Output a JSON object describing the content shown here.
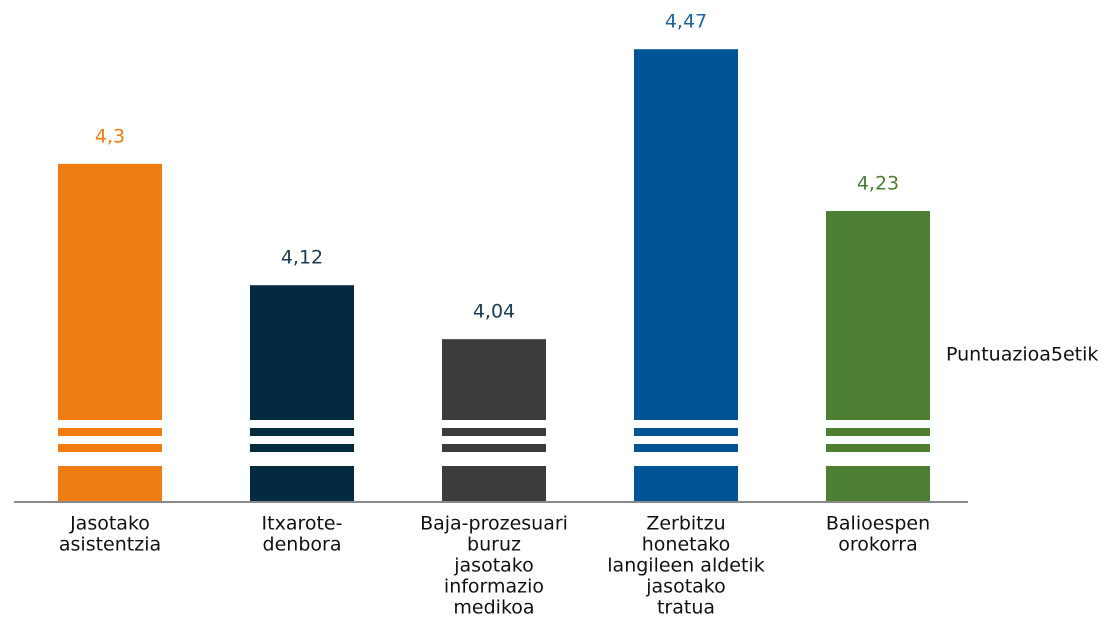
{
  "chart_data": {
    "type": "bar",
    "categories": [
      [
        "Jasotako",
        "asistentzia"
      ],
      [
        "Itxarote-",
        "denbora"
      ],
      [
        "Baja-prozesuari",
        "buruz",
        "jasotako",
        "informazio",
        "medikoa"
      ],
      [
        "Zerbitzu",
        "honetako",
        "langileen aldetik",
        "jasotako",
        "tratua"
      ],
      [
        "Balioespen",
        "orokorra"
      ]
    ],
    "series": [
      {
        "name": "Puntuazioa5etik",
        "values": [
          4.3,
          4.12,
          4.04,
          4.47,
          4.23
        ],
        "value_labels": [
          "4,3",
          "4,12",
          "4,04",
          "4,47",
          "4,23"
        ],
        "colors": [
          "#f07d14",
          "#032a3e",
          "#3c3c3c",
          "#005395",
          "#4c7f33"
        ],
        "value_label_colors": [
          "#f07d14",
          "#1c3b55",
          "#1c3b55",
          "#1c64a0",
          "#4c7f33"
        ]
      }
    ],
    "ylim": [
      3.8,
      4.5
    ],
    "axis_break": true,
    "legend": "right"
  }
}
